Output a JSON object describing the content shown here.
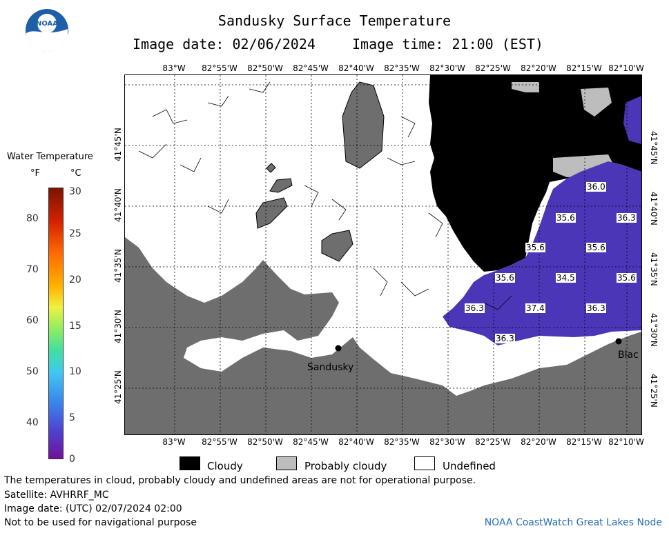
{
  "header": {
    "title": "Sandusky Surface Temperature",
    "image_date": "Image date: 02/06/2024",
    "image_time": "Image time: 21:00 (EST)"
  },
  "logo": {
    "text": "NOAA",
    "icon": "noaa-logo-icon"
  },
  "colorbar": {
    "title": "Water Temperature",
    "unit_f": "°F",
    "unit_c": "°C",
    "f_ticks": [
      "80",
      "70",
      "60",
      "50",
      "40"
    ],
    "c_ticks": [
      "30",
      "25",
      "20",
      "15",
      "10",
      "5",
      "0"
    ]
  },
  "map": {
    "lon_ticks": [
      "83°W",
      "82°55'W",
      "82°50'W",
      "82°45'W",
      "82°40'W",
      "82°35'W",
      "82°30'W",
      "82°25'W",
      "82°20'W",
      "82°15'W",
      "82°10'W"
    ],
    "lat_ticks": [
      "41°45'N",
      "41°40'N",
      "41°35'N",
      "41°30'N",
      "41°25'N"
    ],
    "places": [
      {
        "name": "Sandusky"
      },
      {
        "name": "Blac"
      }
    ],
    "temperature_labels": [
      "36.0",
      "35.6",
      "36.3",
      "35.6",
      "35.6",
      "35.6",
      "34.5",
      "35.6",
      "36.3",
      "37.4",
      "36.3",
      "36.3"
    ],
    "colors": {
      "land": "#6e6e6e",
      "cloud": "#000000",
      "probably_cloudy": "#bdbdbd",
      "water_cold": "#4b36b8"
    }
  },
  "legend": {
    "items": [
      {
        "label": "Cloudy",
        "color": "#000000"
      },
      {
        "label": "Probably cloudy",
        "color": "#bdbdbd"
      },
      {
        "label": "Undefined",
        "color": "#ffffff"
      }
    ]
  },
  "footer": {
    "disclaimer": "The temperatures in cloud, probably cloudy and undefined areas are not for operational purpose.",
    "satellite": "Satellite: AVHRRF_MC",
    "utc_date": "Image date: (UTC) 02/07/2024  02:00",
    "nav_warning": "Not to be used for navigational purpose",
    "credit": "NOAA CoastWatch Great Lakes Node"
  }
}
